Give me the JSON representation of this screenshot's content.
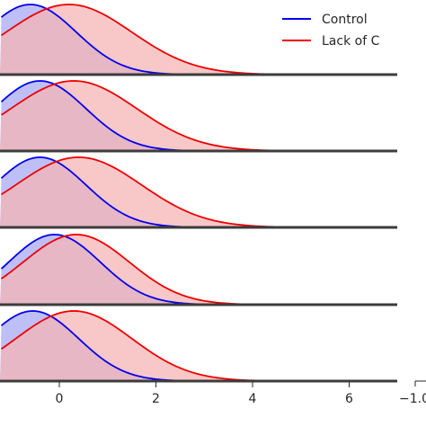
{
  "chart_data": {
    "type": "area",
    "layout": "ridgeline",
    "title": "",
    "xlabel": "",
    "ylabel": "",
    "xlim": [
      -1.2,
      7.2
    ],
    "grid": false,
    "legend": {
      "placement": "top-right"
    },
    "x_ticks": [
      {
        "value": 0,
        "label": "0"
      },
      {
        "value": 2,
        "label": "2"
      },
      {
        "value": 4,
        "label": "4"
      },
      {
        "value": 6,
        "label": "6"
      }
    ],
    "partial_tick_label": "−1.0",
    "series": [
      {
        "name": "Control",
        "color": "#0000ee",
        "fill": "#bcbcf7"
      },
      {
        "name": "Lack of C",
        "color": "#ee0000",
        "fill": "#f6b4b4"
      }
    ],
    "panels": [
      {
        "control": {
          "mean": -0.6,
          "sd": 0.95,
          "x_end": 6.15
        },
        "lack": {
          "mean": 0.2,
          "sd": 1.3,
          "x_end": 6.15
        }
      },
      {
        "control": {
          "mean": -0.4,
          "sd": 0.95,
          "x_end": 5.4
        },
        "lack": {
          "mean": 0.3,
          "sd": 1.3,
          "x_end": 5.4
        }
      },
      {
        "control": {
          "mean": -0.4,
          "sd": 0.95,
          "x_end": 4.6
        },
        "lack": {
          "mean": 0.4,
          "sd": 1.3,
          "x_end": 4.6
        }
      },
      {
        "control": {
          "mean": -0.1,
          "sd": 0.95,
          "x_end": 5.9
        },
        "lack": {
          "mean": 0.35,
          "sd": 1.1,
          "x_end": 5.9
        }
      },
      {
        "control": {
          "mean": -0.55,
          "sd": 0.95,
          "x_end": 6.6
        },
        "lack": {
          "mean": 0.3,
          "sd": 1.2,
          "x_end": 6.6
        }
      }
    ]
  }
}
